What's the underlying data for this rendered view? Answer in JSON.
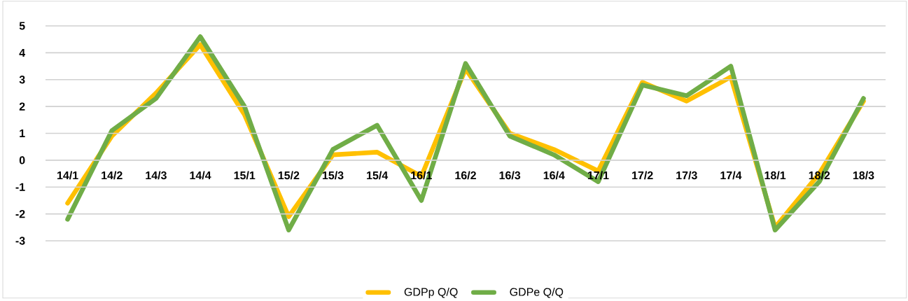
{
  "chart_data": {
    "type": "line",
    "categories": [
      "14/1",
      "14/2",
      "14/3",
      "14/4",
      "15/1",
      "15/2",
      "15/3",
      "15/4",
      "16/1",
      "16/2",
      "16/3",
      "16/4",
      "17/1",
      "17/2",
      "17/3",
      "17/4",
      "18/1",
      "18/2",
      "18/3"
    ],
    "series": [
      {
        "name": "GDPp Q/Q",
        "color": "#ffc000",
        "values": [
          -1.6,
          0.9,
          2.5,
          4.3,
          1.7,
          -2.1,
          0.2,
          0.3,
          -0.6,
          3.4,
          1.0,
          0.4,
          -0.4,
          2.9,
          2.2,
          3.1,
          -2.5,
          -0.5,
          2.2
        ]
      },
      {
        "name": "GDPe Q/Q",
        "color": "#70ad47",
        "values": [
          -2.2,
          1.1,
          2.3,
          4.6,
          2.0,
          -2.6,
          0.4,
          1.3,
          -1.5,
          3.6,
          0.9,
          0.2,
          -0.8,
          2.8,
          2.4,
          3.5,
          -2.6,
          -0.8,
          2.3
        ]
      }
    ],
    "ylim": [
      -3,
      5
    ],
    "yticks": [
      -3,
      -2,
      -1,
      0,
      1,
      2,
      3,
      4,
      5
    ],
    "grid": "y",
    "legend": "bottom"
  }
}
